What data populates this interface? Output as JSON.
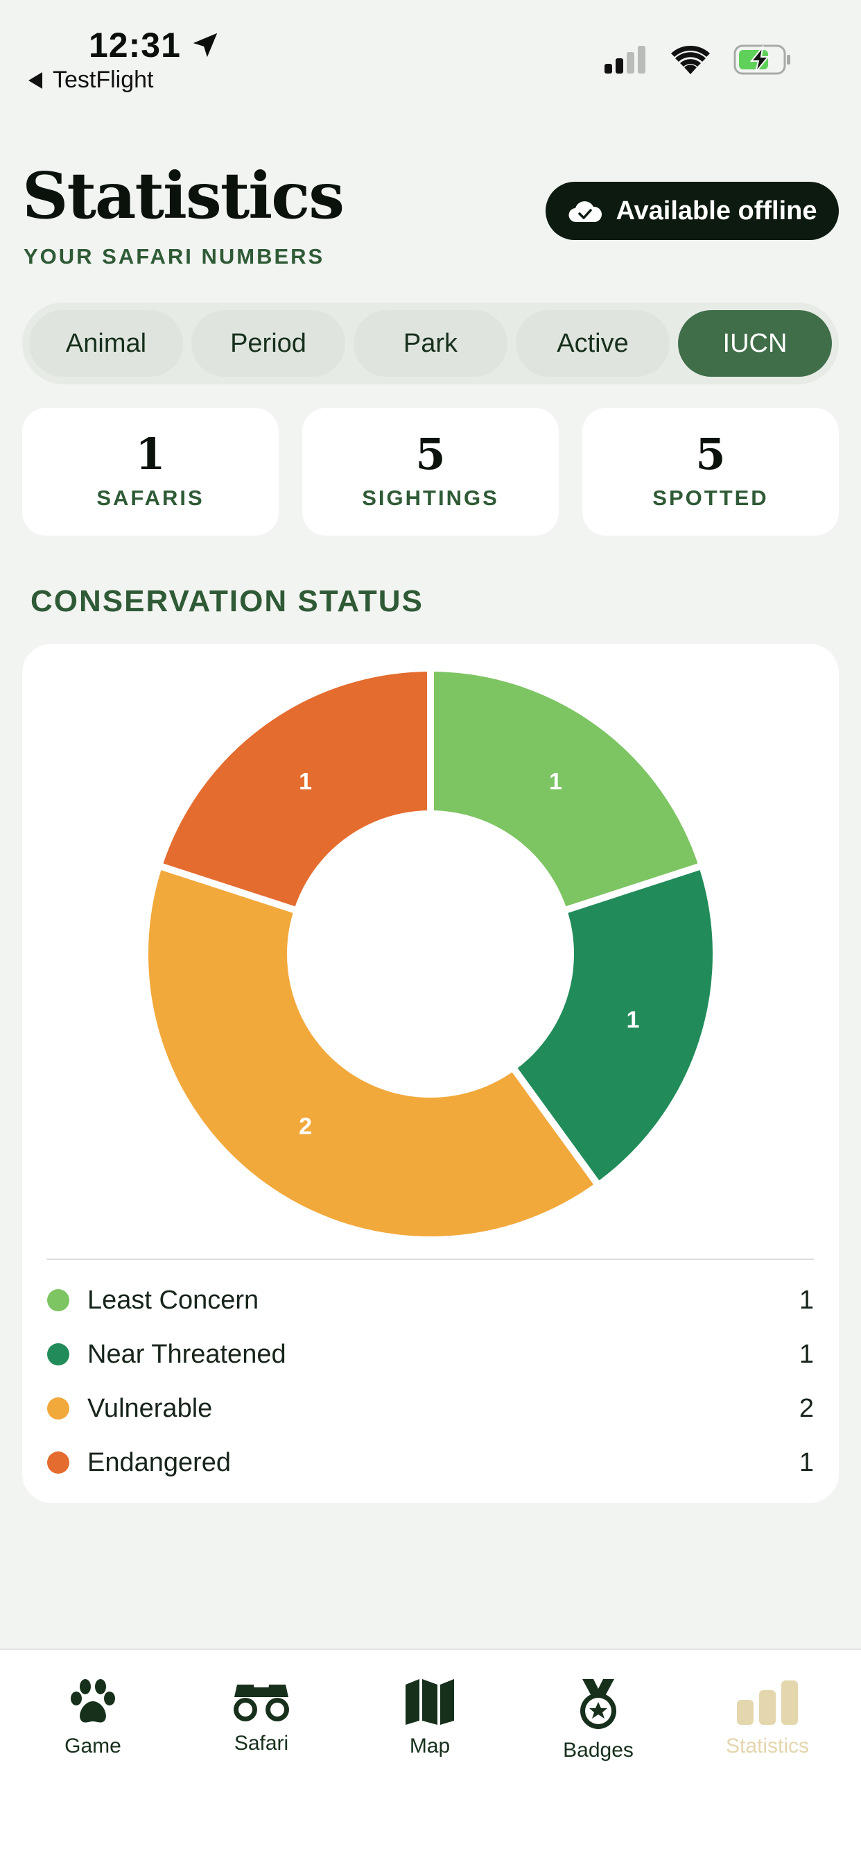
{
  "status_bar": {
    "time": "12:31",
    "back_label": "TestFlight"
  },
  "header": {
    "title": "Statistics",
    "subtitle": "YOUR SAFARI NUMBERS",
    "offline_label": "Available offline"
  },
  "tabs": [
    {
      "label": "Animal",
      "active": false
    },
    {
      "label": "Period",
      "active": false
    },
    {
      "label": "Park",
      "active": false
    },
    {
      "label": "Active",
      "active": false
    },
    {
      "label": "IUCN",
      "active": true
    }
  ],
  "stats": [
    {
      "value": "1",
      "label": "SAFARIS"
    },
    {
      "value": "5",
      "label": "SIGHTINGS"
    },
    {
      "value": "5",
      "label": "SPOTTED"
    }
  ],
  "section": {
    "title": "CONSERVATION STATUS"
  },
  "chart_data": {
    "type": "pie",
    "variant": "donut",
    "categories": [
      "Least Concern",
      "Near Threatened",
      "Vulnerable",
      "Endangered"
    ],
    "values": [
      1,
      1,
      2,
      1
    ],
    "colors": [
      "#7dc463",
      "#218c5a",
      "#f2a93c",
      "#e46c2f"
    ],
    "data_labels": [
      "1",
      "1",
      "2",
      "1"
    ],
    "legend_position": "bottom"
  },
  "legend": [
    {
      "label": "Least Concern",
      "count": "1",
      "color": "#7dc463"
    },
    {
      "label": "Near Threatened",
      "count": "1",
      "color": "#218c5a"
    },
    {
      "label": "Vulnerable",
      "count": "2",
      "color": "#f2a93c"
    },
    {
      "label": "Endangered",
      "count": "1",
      "color": "#e46c2f"
    }
  ],
  "nav": [
    {
      "label": "Game",
      "icon": "paw-icon",
      "active": false
    },
    {
      "label": "Safari",
      "icon": "binoculars-icon",
      "active": false
    },
    {
      "label": "Map",
      "icon": "map-icon",
      "active": false
    },
    {
      "label": "Badges",
      "icon": "medal-icon",
      "active": false
    },
    {
      "label": "Statistics",
      "icon": "bar-chart-icon",
      "active": true
    }
  ],
  "colors": {
    "accent_green": "#3f6e48",
    "dark": "#0d1a0f",
    "nav_active": "#e4d6ad",
    "background": "#f2f4f1"
  }
}
